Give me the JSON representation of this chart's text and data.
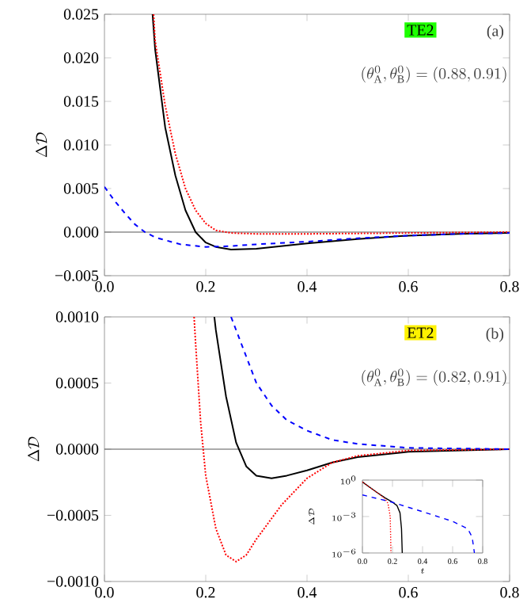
{
  "chart_data": [
    {
      "type": "line",
      "ylabel": "\\Delta\\mathcal{D}",
      "xlim": [
        0,
        0.8
      ],
      "ylim": [
        -0.005,
        0.025
      ],
      "xticks": [
        {
          "value": 0,
          "label": "0.0"
        },
        {
          "value": 0.2,
          "label": "0.2"
        },
        {
          "value": 0.4,
          "label": "0.4"
        },
        {
          "value": 0.6,
          "label": "0.6"
        },
        {
          "value": 0.8,
          "label": "0.8"
        }
      ],
      "yticks": [
        {
          "value": -0.005,
          "label": "−0.005"
        },
        {
          "value": 0,
          "label": "0.000"
        },
        {
          "value": 0.005,
          "label": "0.005"
        },
        {
          "value": 0.01,
          "label": "0.010"
        },
        {
          "value": 0.015,
          "label": "0.015"
        },
        {
          "value": 0.02,
          "label": "0.020"
        },
        {
          "value": 0.025,
          "label": "0.025"
        }
      ],
      "annotations": [
        "TE2",
        "(a)",
        "(\\theta^{0}_{\\mathrm{A}},\\theta^{0}_{\\mathrm{B}})=(0.88,0.91)"
      ],
      "ref_lines": [
        {
          "axis": "y",
          "value": 0,
          "color": "#555555"
        }
      ],
      "series": [
        {
          "color": "#000000",
          "line_style": "solid",
          "x": [
            0.095,
            0.1,
            0.12,
            0.14,
            0.16,
            0.18,
            0.2,
            0.22,
            0.25,
            0.3,
            0.35,
            0.4,
            0.5,
            0.6,
            0.7,
            0.8
          ],
          "values": [
            0.025,
            0.021,
            0.012,
            0.0065,
            0.0025,
            0.0,
            -0.0012,
            -0.0017,
            -0.002,
            -0.0019,
            -0.0016,
            -0.0013,
            -0.0008,
            -0.0004,
            -0.0002,
            -0.0001
          ]
        },
        {
          "color": "#ff0000",
          "line_style": "dotted",
          "x": [
            0.097,
            0.1,
            0.12,
            0.14,
            0.16,
            0.18,
            0.2,
            0.22,
            0.25,
            0.3,
            0.4,
            0.6,
            0.8
          ],
          "values": [
            0.025,
            0.022,
            0.0145,
            0.009,
            0.005,
            0.0025,
            0.001,
            0.0002,
            -0.0001,
            -0.0002,
            -0.0002,
            -0.0001,
            0.0
          ]
        },
        {
          "color": "#0000ff",
          "line_style": "dashed",
          "x": [
            0,
            0.02,
            0.04,
            0.06,
            0.08,
            0.1,
            0.15,
            0.2,
            0.25,
            0.3,
            0.4,
            0.5,
            0.6,
            0.7,
            0.8
          ],
          "values": [
            0.0052,
            0.0036,
            0.0022,
            0.0009,
            0.0,
            -0.0006,
            -0.0014,
            -0.0017,
            -0.0016,
            -0.0014,
            -0.0011,
            -0.0007,
            -0.0004,
            -0.0002,
            -0.0001
          ]
        }
      ]
    },
    {
      "type": "line",
      "ylabel": "\\Delta\\mathcal{D}",
      "xlim": [
        0,
        0.8
      ],
      "ylim": [
        -0.001,
        0.001
      ],
      "xticks": [
        {
          "value": 0,
          "label": "0.0"
        },
        {
          "value": 0.2,
          "label": "0.2"
        },
        {
          "value": 0.4,
          "label": "0.4"
        },
        {
          "value": 0.6,
          "label": "0.6"
        },
        {
          "value": 0.8,
          "label": "0.8"
        }
      ],
      "yticks": [
        {
          "value": -0.001,
          "label": "−0.0010"
        },
        {
          "value": -0.0005,
          "label": "−0.0005"
        },
        {
          "value": 0,
          "label": "0.0000"
        },
        {
          "value": 0.0005,
          "label": "0.0005"
        },
        {
          "value": 0.001,
          "label": "0.0010"
        }
      ],
      "annotations": [
        "ET2",
        "(b)",
        "(\\theta^{0}_{\\mathrm{A}},\\theta^{0}_{\\mathrm{B}})=(0.82,0.91)"
      ],
      "ref_lines": [
        {
          "axis": "y",
          "value": 0,
          "color": "#555555"
        }
      ],
      "series": [
        {
          "color": "#000000",
          "line_style": "solid",
          "x": [
            0.217,
            0.22,
            0.24,
            0.26,
            0.28,
            0.3,
            0.33,
            0.36,
            0.4,
            0.45,
            0.5,
            0.6,
            0.8
          ],
          "values": [
            0.001,
            0.0009,
            0.0004,
            5e-05,
            -0.00013,
            -0.0002,
            -0.00022,
            -0.0002,
            -0.00016,
            -0.0001,
            -6e-05,
            -2e-05,
            0.0
          ]
        },
        {
          "color": "#ff0000",
          "line_style": "dotted",
          "x": [
            0.177,
            0.18,
            0.19,
            0.2,
            0.22,
            0.24,
            0.26,
            0.28,
            0.3,
            0.35,
            0.4,
            0.45,
            0.5,
            0.6,
            0.8
          ],
          "values": [
            0.001,
            0.0008,
            0.0002,
            -0.0002,
            -0.0006,
            -0.0008,
            -0.00085,
            -0.0008,
            -0.00068,
            -0.00042,
            -0.00022,
            -0.0001,
            -5e-05,
            -1e-05,
            0.0
          ]
        },
        {
          "color": "#0000ff",
          "line_style": "dashed",
          "x": [
            0.25,
            0.27,
            0.3,
            0.33,
            0.36,
            0.4,
            0.45,
            0.5,
            0.6,
            0.8
          ],
          "values": [
            0.001,
            0.0008,
            0.0005,
            0.00033,
            0.00022,
            0.00014,
            7e-05,
            4e-05,
            1e-05,
            0.0
          ]
        }
      ]
    },
    {
      "type": "line",
      "xlabel": "t",
      "ylabel": "\\Delta\\mathcal{D}",
      "log": "y",
      "xlim": [
        0,
        0.8
      ],
      "ylim": [
        1e-06,
        1
      ],
      "xticks": [
        {
          "value": 0,
          "label": "0.0"
        },
        {
          "value": 0.2,
          "label": "0.2"
        },
        {
          "value": 0.4,
          "label": "0.4"
        },
        {
          "value": 0.6,
          "label": "0.6"
        },
        {
          "value": 0.8,
          "label": "0.8"
        }
      ],
      "yticks": [
        {
          "value": 1e-06,
          "label": "10^{-6}"
        },
        {
          "value": 0.001,
          "label": "10^{-3}"
        },
        {
          "value": 1,
          "label": "10^{0}"
        }
      ],
      "series": [
        {
          "color": "#000000",
          "line_style": "solid",
          "x": [
            0,
            0.05,
            0.1,
            0.15,
            0.2,
            0.23,
            0.25,
            0.26,
            0.265
          ],
          "values": [
            0.7,
            0.25,
            0.09,
            0.035,
            0.015,
            0.008,
            0.002,
            0.0001,
            1e-06
          ]
        },
        {
          "color": "#ff0000",
          "line_style": "dotted",
          "x": [
            0,
            0.05,
            0.1,
            0.15,
            0.17,
            0.185,
            0.19
          ],
          "values": [
            0.7,
            0.25,
            0.09,
            0.03,
            0.012,
            0.001,
            1e-06
          ]
        },
        {
          "color": "#0000ff",
          "line_style": "dashed",
          "x": [
            0,
            0.1,
            0.2,
            0.3,
            0.4,
            0.5,
            0.6,
            0.7,
            0.73,
            0.745
          ],
          "values": [
            0.06,
            0.03,
            0.015,
            0.006,
            0.0025,
            0.001,
            0.0004,
            0.0001,
            2e-05,
            1e-06
          ]
        }
      ]
    }
  ]
}
